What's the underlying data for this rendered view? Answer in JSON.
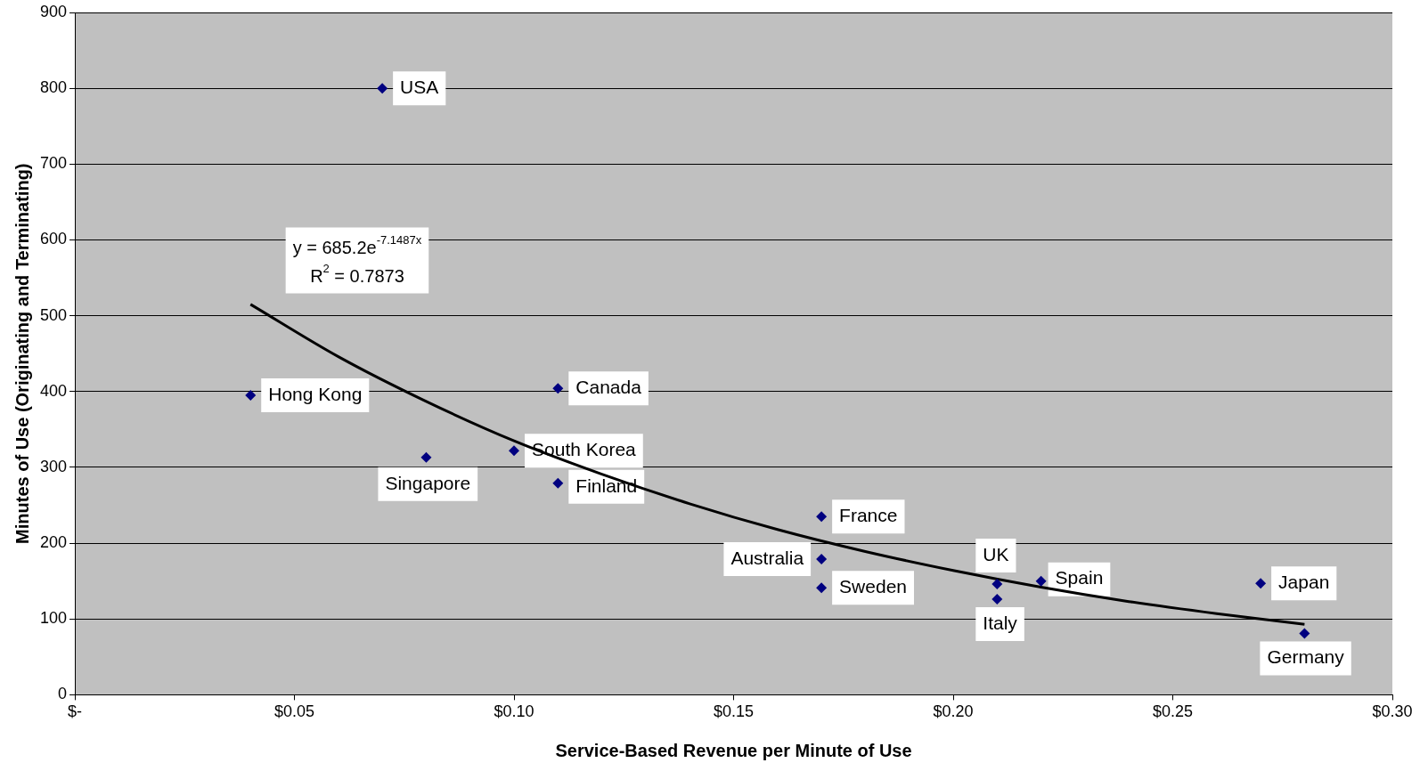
{
  "chart_data": {
    "type": "scatter",
    "xlabel": "Service-Based Revenue per Minute of Use",
    "ylabel": "Minutes of Use (Originating and Terminating)",
    "xlim": [
      0,
      0.3
    ],
    "xticks": [
      {
        "value": 0,
        "label": "$-"
      },
      {
        "value": 0.05,
        "label": "$0.05"
      },
      {
        "value": 0.1,
        "label": "$0.10"
      },
      {
        "value": 0.15,
        "label": "$0.15"
      },
      {
        "value": 0.2,
        "label": "$0.20"
      },
      {
        "value": 0.25,
        "label": "$0.25"
      },
      {
        "value": 0.3,
        "label": "$0.30"
      }
    ],
    "ylim": [
      0,
      900
    ],
    "yticks": [
      0,
      100,
      200,
      300,
      400,
      500,
      600,
      700,
      800,
      900
    ],
    "grid": "y",
    "legend": false,
    "marker": "diamond",
    "series": [
      {
        "name": "USA",
        "color": "#000080",
        "x": [
          0.07
        ],
        "values": [
          800
        ]
      },
      {
        "name": "Hong Kong",
        "color": "#000080",
        "x": [
          0.04
        ],
        "values": [
          395
        ]
      },
      {
        "name": "Canada",
        "color": "#000080",
        "x": [
          0.11
        ],
        "values": [
          404
        ]
      },
      {
        "name": "South Korea",
        "color": "#000080",
        "x": [
          0.1
        ],
        "values": [
          322
        ]
      },
      {
        "name": "Singapore",
        "color": "#000080",
        "x": [
          0.08
        ],
        "values": [
          313
        ]
      },
      {
        "name": "Finland",
        "color": "#000080",
        "x": [
          0.11
        ],
        "values": [
          279
        ]
      },
      {
        "name": "France",
        "color": "#000080",
        "x": [
          0.17
        ],
        "values": [
          235
        ]
      },
      {
        "name": "Australia",
        "color": "#000080",
        "x": [
          0.17
        ],
        "values": [
          179
        ]
      },
      {
        "name": "Sweden",
        "color": "#000080",
        "x": [
          0.17
        ],
        "values": [
          141
        ]
      },
      {
        "name": "UK",
        "color": "#000080",
        "x": [
          0.21
        ],
        "values": [
          146
        ]
      },
      {
        "name": "Italy",
        "color": "#000080",
        "x": [
          0.21
        ],
        "values": [
          126
        ]
      },
      {
        "name": "Spain",
        "color": "#000080",
        "x": [
          0.22
        ],
        "values": [
          150
        ]
      },
      {
        "name": "Japan",
        "color": "#000080",
        "x": [
          0.27
        ],
        "values": [
          147
        ]
      },
      {
        "name": "Germany",
        "color": "#000080",
        "x": [
          0.28
        ],
        "values": [
          81
        ]
      },
      {
        "type": "line",
        "color": "#000000",
        "marker": "none",
        "x": [
          0.04,
          0.06,
          0.08,
          0.1,
          0.12,
          0.14,
          0.16,
          0.18,
          0.2,
          0.22,
          0.24,
          0.26,
          0.28
        ],
        "values": [
          515,
          446,
          387,
          335,
          291,
          252,
          218,
          189,
          164,
          142,
          123,
          107,
          93
        ]
      }
    ],
    "annotations": [
      "y = 685.2e$^{-7.1487x}$",
      "R$^{2}$ = 0.7873"
    ]
  }
}
